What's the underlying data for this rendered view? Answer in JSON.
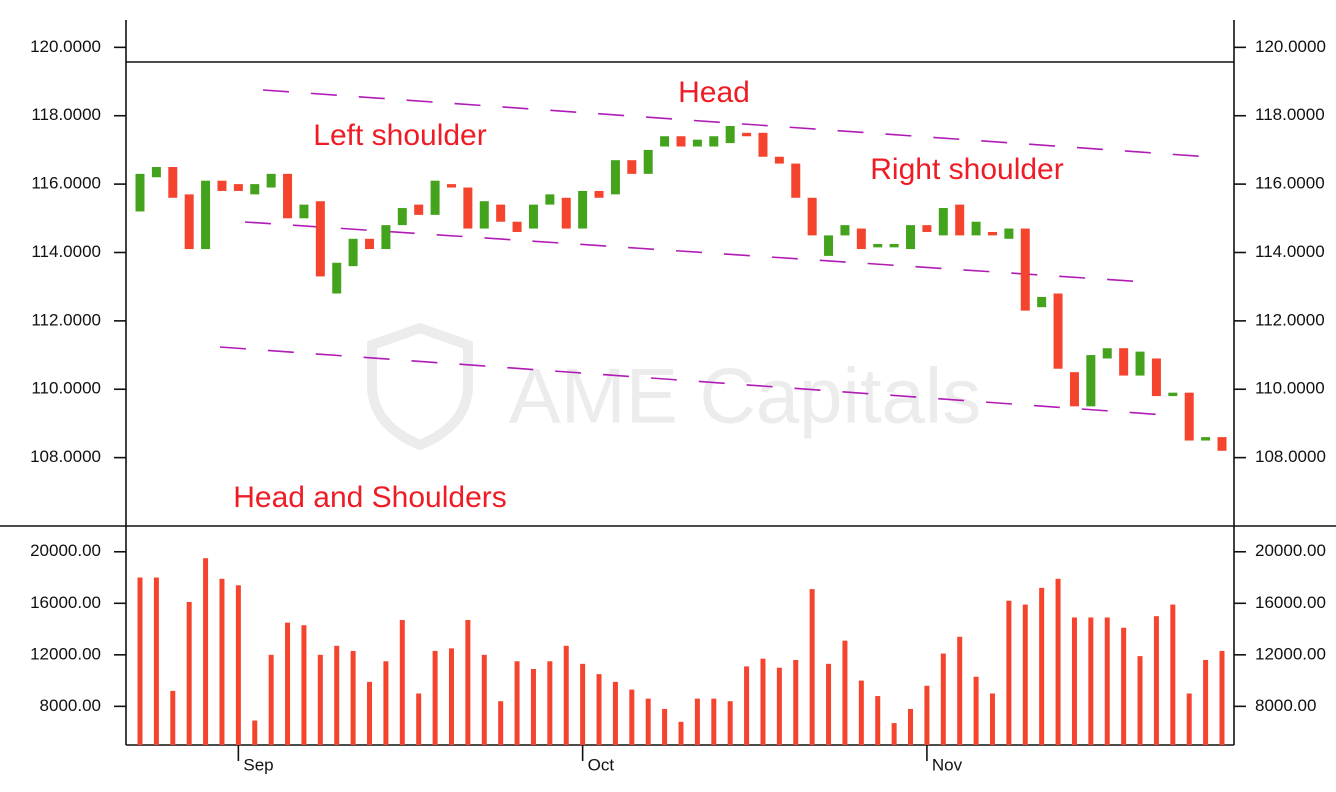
{
  "chart_data": {
    "type": "candlestick",
    "categories": [
      null,
      null,
      null,
      null,
      null,
      null,
      "Sep",
      null,
      null,
      null,
      null,
      null,
      null,
      null,
      null,
      null,
      null,
      null,
      null,
      null,
      null,
      null,
      null,
      null,
      null,
      null,
      null,
      "Oct",
      null,
      null,
      null,
      null,
      null,
      null,
      null,
      null,
      null,
      null,
      null,
      null,
      null,
      null,
      null,
      null,
      null,
      null,
      null,
      null,
      "Nov",
      null,
      null,
      null,
      null,
      null,
      null,
      null,
      null,
      null,
      null,
      null,
      null,
      null,
      null,
      null,
      null,
      null,
      null
    ],
    "open": [
      115.2,
      116.2,
      116.5,
      115.7,
      114.1,
      116.1,
      116.0,
      115.7,
      115.9,
      116.3,
      115.0,
      115.5,
      112.8,
      113.6,
      114.4,
      114.1,
      114.8,
      115.4,
      115.1,
      116.0,
      115.9,
      114.7,
      115.4,
      114.9,
      114.7,
      115.4,
      115.6,
      114.7,
      115.8,
      115.7,
      116.7,
      116.3,
      117.1,
      117.4,
      117.1,
      117.1,
      117.2,
      117.5,
      117.5,
      116.8,
      116.6,
      115.6,
      113.9,
      114.5,
      114.7,
      114.15,
      114.15,
      114.1,
      114.8,
      114.5,
      115.4,
      114.5,
      114.6,
      114.4,
      114.7,
      112.4,
      112.8,
      110.5,
      109.5,
      110.9,
      111.2,
      110.4,
      110.9,
      109.8,
      109.9,
      108.5,
      108.6
    ],
    "close": [
      116.3,
      116.5,
      115.6,
      114.1,
      116.1,
      115.8,
      115.8,
      116.0,
      116.3,
      115.0,
      115.4,
      113.3,
      113.7,
      114.4,
      114.1,
      114.8,
      115.3,
      115.1,
      116.1,
      115.9,
      114.7,
      115.5,
      114.9,
      114.6,
      115.4,
      115.7,
      114.7,
      115.8,
      115.6,
      116.7,
      116.3,
      117.0,
      117.4,
      117.1,
      117.3,
      117.4,
      117.7,
      117.4,
      116.8,
      116.6,
      115.6,
      114.5,
      114.5,
      114.8,
      114.1,
      114.25,
      114.25,
      114.8,
      114.6,
      115.3,
      114.5,
      114.9,
      114.5,
      114.7,
      112.3,
      112.7,
      110.6,
      109.5,
      111.0,
      111.2,
      110.4,
      111.1,
      109.8,
      109.9,
      108.5,
      108.6,
      108.2
    ],
    "up_color": "#44a31c",
    "down_color": "#f4442e",
    "ylim": [
      106,
      120.8
    ],
    "yticks": [
      {
        "value": 108,
        "label": "108.0000"
      },
      {
        "value": 110,
        "label": "110.0000"
      },
      {
        "value": 112,
        "label": "112.0000"
      },
      {
        "value": 114,
        "label": "114.0000"
      },
      {
        "value": 116,
        "label": "116.0000"
      },
      {
        "value": 118,
        "label": "118.0000"
      },
      {
        "value": 120,
        "label": "120.0000"
      }
    ],
    "volume": {
      "type": "bar",
      "values": [
        18000,
        18000,
        9200,
        16100,
        19500,
        17900,
        17400,
        6900,
        12000,
        14500,
        14300,
        12000,
        12700,
        12300,
        9900,
        11500,
        14700,
        9000,
        12300,
        12500,
        14700,
        12000,
        8400,
        11500,
        10900,
        11500,
        12700,
        11300,
        10500,
        9900,
        9300,
        8600,
        7800,
        6800,
        8600,
        8600,
        8400,
        11100,
        11700,
        11000,
        11600,
        17100,
        11300,
        13100,
        10000,
        8800,
        6700,
        7800,
        9600,
        12100,
        13400,
        10300,
        9000,
        16200,
        15900,
        17200,
        17900,
        14900,
        14900,
        14900,
        14100,
        11900,
        15000,
        15900,
        9000,
        11600,
        12300
      ],
      "color": "#f4442e",
      "ylim": [
        5000,
        22000
      ],
      "yticks": [
        {
          "value": 8000,
          "label": "8000.00"
        },
        {
          "value": 12000,
          "label": "12000.00"
        },
        {
          "value": 16000,
          "label": "16000.00"
        },
        {
          "value": 20000,
          "label": "20000.00"
        }
      ]
    },
    "annotations": [
      "Left shoulder",
      "Head",
      "Right shoulder",
      "Head and Shoulders"
    ],
    "watermark": "AME Capitals"
  }
}
